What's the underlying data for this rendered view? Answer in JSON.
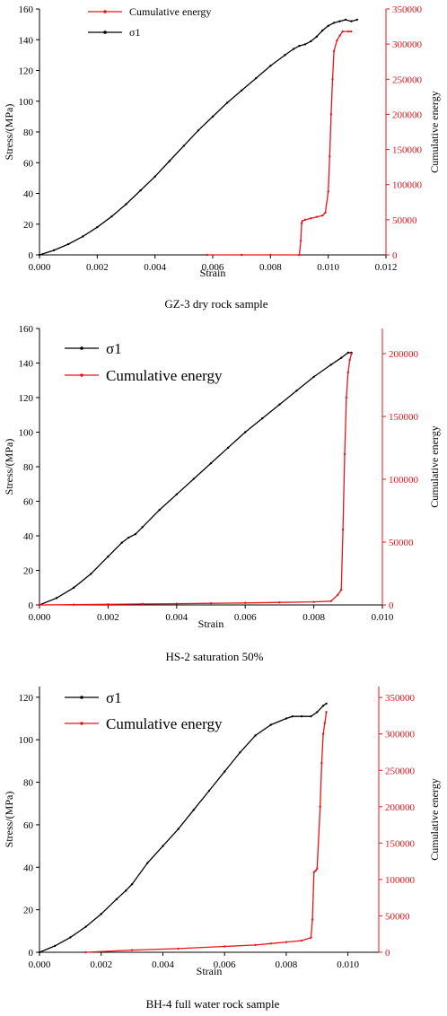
{
  "chart_data": [
    {
      "type": "line",
      "caption": "GZ-3 dry rock sample",
      "xlabel": "Strain",
      "ylabel": "Stress/(MPa)",
      "y2label": "Cumulative energy",
      "xlim": [
        0,
        0.012
      ],
      "xticks": [
        "0.000",
        "0.002",
        "0.004",
        "0.006",
        "0.008",
        "0.010",
        "0.012"
      ],
      "ylim": [
        0,
        160
      ],
      "yticks": [
        "0",
        "20",
        "40",
        "60",
        "80",
        "100",
        "120",
        "140",
        "160"
      ],
      "y2lim": [
        0,
        350000
      ],
      "y2ticks": [
        "0",
        "50000",
        "100000",
        "150000",
        "200000",
        "250000",
        "300000",
        "350000"
      ],
      "legend": [
        {
          "label": "Cumulative energy",
          "color": "#e8141b"
        },
        {
          "label": "σ1",
          "color": "#000000"
        }
      ],
      "series": [
        {
          "name": "σ1",
          "axis": "left",
          "color": "#000000",
          "x": [
            0,
            0.0005,
            0.001,
            0.0015,
            0.002,
            0.0025,
            0.003,
            0.0035,
            0.004,
            0.0045,
            0.005,
            0.0055,
            0.006,
            0.0065,
            0.007,
            0.0075,
            0.008,
            0.0085,
            0.0088,
            0.009,
            0.0092,
            0.0094,
            0.0096,
            0.0098,
            0.01,
            0.0102,
            0.0104,
            0.0106,
            0.0108,
            0.011
          ],
          "y": [
            0,
            3,
            7,
            12,
            18,
            25,
            33,
            42,
            51,
            61,
            71,
            81,
            90,
            99,
            107,
            115,
            123,
            130,
            134,
            136,
            137,
            139,
            142,
            146,
            149,
            151,
            152,
            153,
            152,
            153
          ]
        },
        {
          "name": "Cumulative energy",
          "axis": "right",
          "color": "#e8141b",
          "x": [
            0.0058,
            0.007,
            0.008,
            0.009,
            0.00905,
            0.00908,
            0.0091,
            0.0092,
            0.0094,
            0.0096,
            0.0098,
            0.0099,
            0.01,
            0.01005,
            0.0101,
            0.01015,
            0.0102,
            0.0103,
            0.0104,
            0.0105,
            0.0107,
            0.0108
          ],
          "y": [
            0,
            0,
            0,
            0,
            20000,
            45000,
            48000,
            50000,
            52000,
            54000,
            56000,
            60000,
            90000,
            140000,
            200000,
            250000,
            290000,
            305000,
            312000,
            318000,
            318000,
            318000
          ]
        }
      ]
    },
    {
      "type": "line",
      "caption": "HS-2 saturation 50%",
      "xlabel": "Strain",
      "ylabel": "Stress/(MPa)",
      "y2label": "Cumulative energy",
      "xlim": [
        0,
        0.01
      ],
      "xticks": [
        "0.000",
        "0.002",
        "0.004",
        "0.006",
        "0.008",
        "0.010"
      ],
      "ylim": [
        0,
        160
      ],
      "yticks": [
        "0",
        "20",
        "40",
        "60",
        "80",
        "100",
        "120",
        "140",
        "160"
      ],
      "y2lim": [
        0,
        220000
      ],
      "y2ticks": [
        "0",
        "50000",
        "100000",
        "150000",
        "200000"
      ],
      "legend": [
        {
          "label": "σ1",
          "color": "#000000"
        },
        {
          "label": "Cumulative energy",
          "color": "#e8141b"
        }
      ],
      "series": [
        {
          "name": "σ1",
          "axis": "left",
          "color": "#000000",
          "x": [
            0,
            0.0005,
            0.001,
            0.0015,
            0.002,
            0.0024,
            0.0026,
            0.0028,
            0.003,
            0.0035,
            0.004,
            0.0045,
            0.005,
            0.0055,
            0.006,
            0.0065,
            0.007,
            0.0075,
            0.008,
            0.0085,
            0.0088,
            0.009,
            0.0091
          ],
          "y": [
            0,
            4,
            10,
            18,
            28,
            36,
            39,
            41,
            45,
            55,
            64,
            73,
            82,
            91,
            100,
            108,
            116,
            124,
            132,
            139,
            143,
            146,
            146
          ]
        },
        {
          "name": "Cumulative energy",
          "axis": "right",
          "color": "#e8141b",
          "x": [
            0,
            0.001,
            0.002,
            0.003,
            0.004,
            0.005,
            0.006,
            0.007,
            0.008,
            0.0085,
            0.0087,
            0.0088,
            0.00885,
            0.0089,
            0.00895,
            0.009,
            0.00905,
            0.0091
          ],
          "y": [
            0,
            200,
            500,
            800,
            1000,
            1300,
            1600,
            2000,
            2400,
            3000,
            8000,
            12000,
            60000,
            120000,
            165000,
            185000,
            195000,
            200000
          ]
        }
      ]
    },
    {
      "type": "line",
      "caption": "BH-4 full water rock sample",
      "xlabel": "Strain",
      "ylabel": "Stress/(MPa)",
      "y2label": "Cumulative energy",
      "xlim": [
        0,
        0.011
      ],
      "xticks": [
        "0.000",
        "0.002",
        "0.004",
        "0.006",
        "0.008",
        "0.010"
      ],
      "ylim": [
        0,
        125
      ],
      "yticks": [
        "0",
        "20",
        "40",
        "60",
        "80",
        "100",
        "120"
      ],
      "y2lim": [
        0,
        365000
      ],
      "y2ticks": [
        "0",
        "50000",
        "100000",
        "150000",
        "200000",
        "250000",
        "300000",
        "350000"
      ],
      "legend": [
        {
          "label": "σ1",
          "color": "#000000"
        },
        {
          "label": "Cumulative energy",
          "color": "#e8141b"
        }
      ],
      "series": [
        {
          "name": "σ1",
          "axis": "left",
          "color": "#000000",
          "x": [
            0,
            0.0005,
            0.001,
            0.0015,
            0.002,
            0.0025,
            0.0028,
            0.003,
            0.0035,
            0.004,
            0.0045,
            0.005,
            0.0055,
            0.006,
            0.0065,
            0.007,
            0.0075,
            0.008,
            0.0082,
            0.0085,
            0.0088,
            0.009,
            0.0092,
            0.0093
          ],
          "y": [
            0,
            3,
            7,
            12,
            18,
            25,
            29,
            32,
            42,
            50,
            58,
            67,
            76,
            85,
            94,
            102,
            107,
            110,
            111,
            111,
            111,
            113,
            116,
            117
          ]
        },
        {
          "name": "Cumulative energy",
          "axis": "right",
          "color": "#e8141b",
          "x": [
            0.0015,
            0.003,
            0.0045,
            0.006,
            0.007,
            0.0075,
            0.008,
            0.0085,
            0.0088,
            0.00885,
            0.0089,
            0.00895,
            0.009,
            0.0091,
            0.00915,
            0.0092,
            0.00925,
            0.0093
          ],
          "y": [
            0,
            3000,
            5000,
            8000,
            10000,
            12000,
            14000,
            16000,
            20000,
            45000,
            110000,
            112000,
            115000,
            200000,
            260000,
            300000,
            315000,
            330000
          ]
        }
      ]
    }
  ]
}
